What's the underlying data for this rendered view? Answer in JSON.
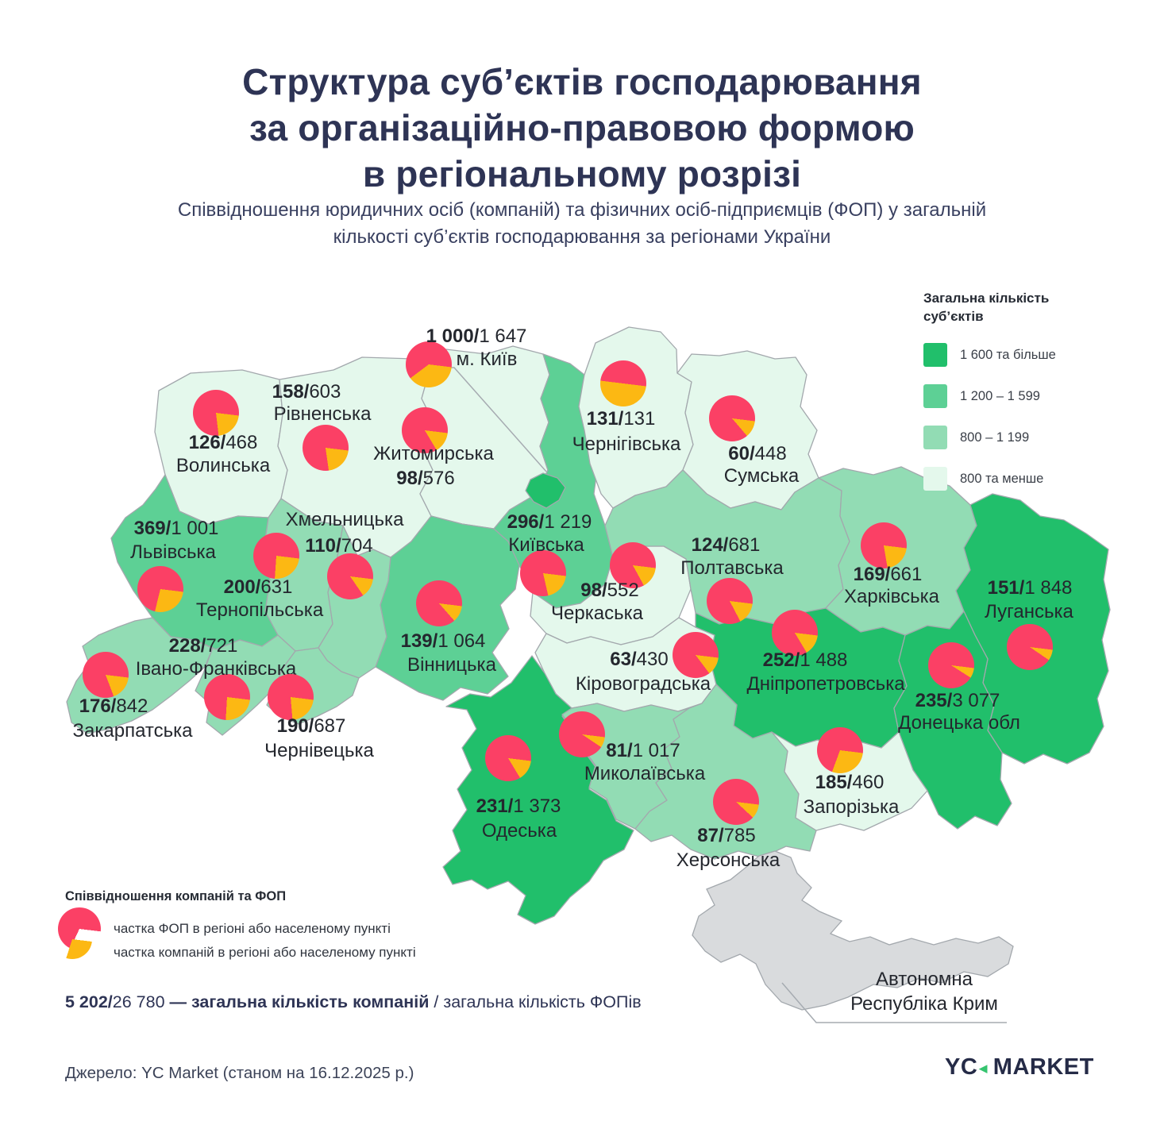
{
  "title": {
    "lines": [
      "Структура суб’єктів господарювання",
      "за організаційно-правовою формою",
      "в регіональному розрізі"
    ]
  },
  "subtitle": "Співвідношення юридичних осіб (компаній) та фізичних осіб-підприємців (ФОП) у загальній кількості суб’єктів господарювання за регіонами України",
  "value_separator": "/",
  "colors": {
    "bucket_1600_plus": "#21bf6b",
    "bucket_1200_1599": "#5dd095",
    "bucket_800_1199": "#92dcb4",
    "bucket_under_800": "#e4f8ec",
    "crimea": "#d9dbdd",
    "border": "#a3a8ad",
    "leader": "#a6abb1",
    "pie_fop": "#fb4065",
    "pie_company": "#fcb813",
    "accent_navy": "#2e3455",
    "logo_green": "#35c46f"
  },
  "map_legend": {
    "title": "Загальна кількість суб’єктів",
    "items": [
      {
        "label": "1 600 та більше",
        "bucket": "bucket_1600_plus"
      },
      {
        "label": "1 200 – 1 599",
        "bucket": "bucket_1200_1599"
      },
      {
        "label": "800 – 1 199",
        "bucket": "bucket_800_1199"
      },
      {
        "label": "800 та менше",
        "bucket": "bucket_under_800"
      }
    ]
  },
  "chart_data": {
    "type": "choropleth-map-with-pies",
    "region_value_format": "компанії/ФОП",
    "regions": [
      {
        "id": "kyiv_city",
        "name": "м. Київ",
        "companies": "1 000",
        "fop": "1 647",
        "bucket": "bucket_1600_plus"
      },
      {
        "id": "volynska",
        "name": "Волинська",
        "companies": "126",
        "fop": "468",
        "bucket": "bucket_under_800"
      },
      {
        "id": "rivnenska",
        "name": "Рівненська",
        "companies": "158",
        "fop": "603",
        "bucket": "bucket_under_800"
      },
      {
        "id": "zhytomyrska",
        "name": "Житомирська",
        "companies": "98",
        "fop": "576",
        "bucket": "bucket_under_800"
      },
      {
        "id": "chernihivska",
        "name": "Чернігівська",
        "companies": "131",
        "fop": "131",
        "bucket": "bucket_under_800"
      },
      {
        "id": "sumska",
        "name": "Сумська",
        "companies": "60",
        "fop": "448",
        "bucket": "bucket_under_800"
      },
      {
        "id": "lvivska",
        "name": "Львівська",
        "companies": "369",
        "fop": "1 001",
        "bucket": "bucket_1200_1599"
      },
      {
        "id": "ternopilska",
        "name": "Тернопільська",
        "companies": "200",
        "fop": "631",
        "bucket": "bucket_800_1199"
      },
      {
        "id": "khmelnytska",
        "name": "Хмельницька",
        "companies": "110",
        "fop": "704",
        "bucket": "bucket_800_1199"
      },
      {
        "id": "kyivska",
        "name": "Київська",
        "companies": "296",
        "fop": "1 219",
        "bucket": "bucket_1200_1599"
      },
      {
        "id": "cherkaska",
        "name": "Черкаська",
        "companies": "98",
        "fop": "552",
        "bucket": "bucket_under_800"
      },
      {
        "id": "poltavska",
        "name": "Полтавська",
        "companies": "124",
        "fop": "681",
        "bucket": "bucket_800_1199"
      },
      {
        "id": "kharkivska",
        "name": "Харківська",
        "companies": "169",
        "fop": "661",
        "bucket": "bucket_800_1199"
      },
      {
        "id": "luhanska",
        "name": "Луганська",
        "companies": "151",
        "fop": "1 848",
        "bucket": "bucket_1600_plus"
      },
      {
        "id": "vinnytska",
        "name": "Вінницька",
        "companies": "139",
        "fop": "1 064",
        "bucket": "bucket_1200_1599"
      },
      {
        "id": "kirovohradska",
        "name": "Кіровоградська",
        "companies": "63",
        "fop": "430",
        "bucket": "bucket_under_800"
      },
      {
        "id": "dnipropetrovska",
        "name": "Дніпропетровська",
        "companies": "252",
        "fop": "1 488",
        "bucket": "bucket_1600_plus"
      },
      {
        "id": "donetska",
        "name": "Донецька обл",
        "companies": "235",
        "fop": "3 077",
        "bucket": "bucket_1600_plus"
      },
      {
        "id": "zakarpatska",
        "name": "Закарпатська",
        "companies": "176",
        "fop": "842",
        "bucket": "bucket_800_1199"
      },
      {
        "id": "ivano_frankivska",
        "name": "Івано-Франківська",
        "companies": "228",
        "fop": "721",
        "bucket": "bucket_800_1199"
      },
      {
        "id": "chernivetska",
        "name": "Чернівецька",
        "companies": "190",
        "fop": "687",
        "bucket": "bucket_800_1199"
      },
      {
        "id": "odeska",
        "name": "Одеська",
        "companies": "231",
        "fop": "1 373",
        "bucket": "bucket_1600_plus"
      },
      {
        "id": "mykolaivska",
        "name": "Миколаївська",
        "companies": "81",
        "fop": "1 017",
        "bucket": "bucket_800_1199"
      },
      {
        "id": "khersonska",
        "name": "Херсонська",
        "companies": "87",
        "fop": "785",
        "bucket": "bucket_800_1199"
      },
      {
        "id": "zaporizka",
        "name": "Запорізька",
        "companies": "185",
        "fop": "460",
        "bucket": "bucket_under_800"
      }
    ]
  },
  "crimea": {
    "name_lines": [
      "Автономна",
      "Республіка Крим"
    ]
  },
  "ratio_legend": {
    "title": "Співвідношення компаній та ФОП",
    "items": [
      {
        "label": "частка ФОП в регіоні або населеному пункті",
        "color_key": "pie_fop"
      },
      {
        "label": "частка компаній в регіоні або населеному пункті",
        "color_key": "pie_company"
      }
    ]
  },
  "totals": {
    "segments": [
      {
        "text": "5 202/",
        "bold": true
      },
      {
        "text": "26 780 ",
        "bold": false
      },
      {
        "text": "— загальна кількість компаній ",
        "bold": true
      },
      {
        "text": "/ загальна кількість ФОПів",
        "bold": false
      }
    ]
  },
  "source": "Джерело: YC Market (станом на 16.12.2025 р.)",
  "logo": {
    "left": "YC",
    "right": "MARKET"
  }
}
